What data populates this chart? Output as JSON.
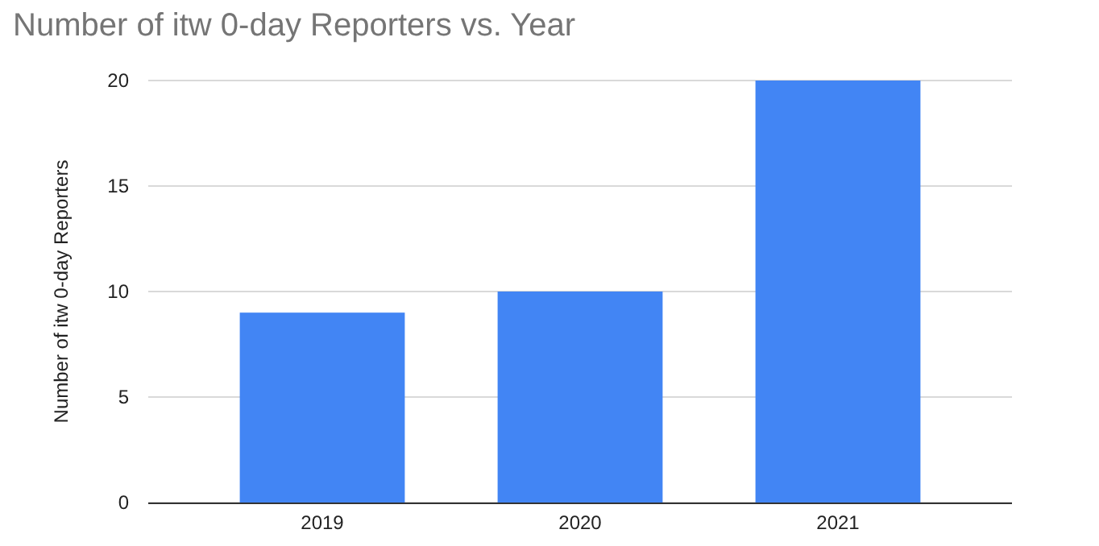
{
  "chart_data": {
    "type": "bar",
    "title": "Number of itw 0-day Reporters vs. Year",
    "ylabel": "Number of itw 0-day Reporters",
    "categories": [
      "2019",
      "2020",
      "2021"
    ],
    "values": [
      9,
      10,
      20
    ],
    "color": "#4285f4",
    "ylim": [
      0,
      20
    ],
    "yticks": [
      0,
      5,
      10,
      15,
      20
    ],
    "grid": "y"
  }
}
